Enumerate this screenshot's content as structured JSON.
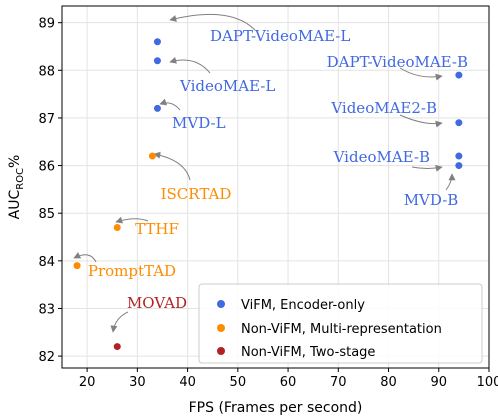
{
  "chart_data": {
    "type": "scatter",
    "xlabel": "FPS (Frames per second)",
    "ylabel_main": "AUC",
    "ylabel_sub": "ROC",
    "ylabel_suffix": "%",
    "xlim": [
      15,
      100
    ],
    "ylim": [
      81.75,
      89.35
    ],
    "x_ticks": [
      20,
      30,
      40,
      50,
      60,
      70,
      80,
      90,
      100
    ],
    "y_ticks": [
      82,
      83,
      84,
      85,
      86,
      87,
      88,
      89
    ],
    "grid": true,
    "legend_position": "bottom-right",
    "series": [
      {
        "name": "ViFM, Encoder-only",
        "color": "#4169e1",
        "points": [
          {
            "label": "DAPT-VideoMAE-L",
            "x": 34,
            "y": 88.6
          },
          {
            "label": "VideoMAE-L",
            "x": 34,
            "y": 88.2
          },
          {
            "label": "MVD-L",
            "x": 34,
            "y": 87.2
          },
          {
            "label": "DAPT-VideoMAE-B",
            "x": 94,
            "y": 87.9
          },
          {
            "label": "VideoMAE2-B",
            "x": 94,
            "y": 86.9
          },
          {
            "label": "VideoMAE-B",
            "x": 94,
            "y": 86.2
          },
          {
            "label": "MVD-B",
            "x": 94,
            "y": 86.0
          }
        ]
      },
      {
        "name": "Non-ViFM, Multi-representation",
        "color": "#ff8c00",
        "points": [
          {
            "label": "ISCRTAD",
            "x": 33,
            "y": 86.2
          },
          {
            "label": "TTHF",
            "x": 26,
            "y": 84.7
          },
          {
            "label": "PromptTAD",
            "x": 18,
            "y": 83.9
          }
        ]
      },
      {
        "name": "Non-ViFM, Two-stage",
        "color": "#b22222",
        "points": [
          {
            "label": "MOVAD",
            "x": 26,
            "y": 82.2
          }
        ]
      }
    ]
  }
}
